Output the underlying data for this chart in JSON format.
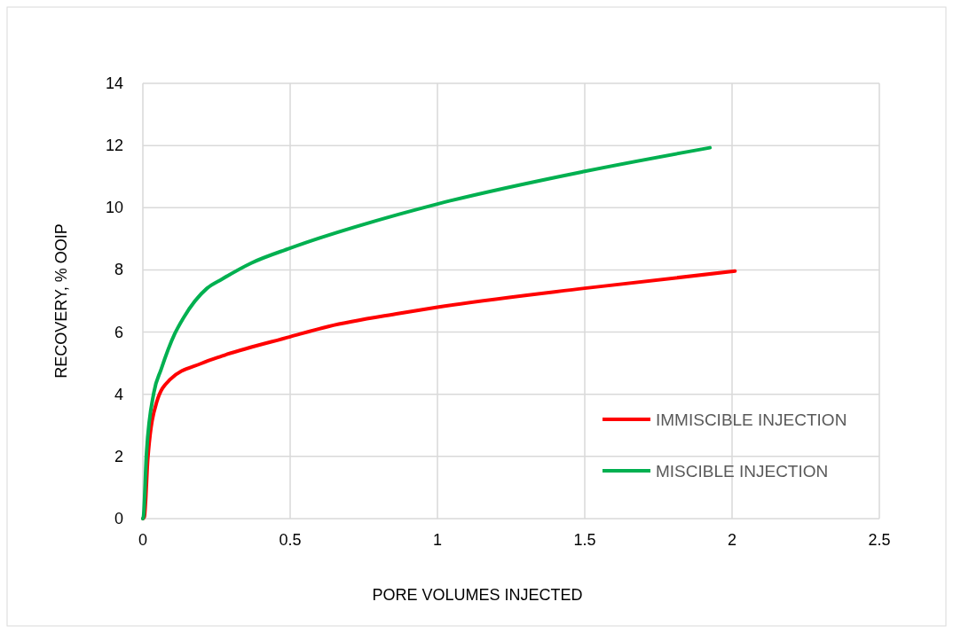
{
  "chart_data": {
    "type": "line",
    "xlabel": "PORE VOLUMES INJECTED",
    "ylabel": "RECOVERY, % OOIP",
    "xlim": [
      0,
      2.5
    ],
    "xticks": [
      0,
      0.5,
      1,
      1.5,
      2,
      2.5
    ],
    "ylim": [
      0,
      14
    ],
    "yticks": [
      0,
      2,
      4,
      6,
      8,
      10,
      12,
      14
    ],
    "grid": true,
    "legend": "bottom right",
    "marker": "none",
    "line_style": "solid",
    "series": [
      {
        "name": "IMMISCIBLE INJECTION",
        "color": "#ff0000",
        "x": [
          0,
          0.005,
          0.017,
          0.047,
          0.092,
          0.198,
          0.268,
          0.5,
          0.63,
          0.87,
          1.0,
          1.5,
          2.01
        ],
        "values": [
          0,
          0.06,
          1.95,
          3.75,
          4.47,
          4.99,
          5.23,
          5.85,
          6.18,
          6.6,
          6.8,
          7.41,
          7.96
        ]
      },
      {
        "name": "MISCIBLE INJECTION",
        "color": "#00b050",
        "x": [
          0,
          0.002,
          0.012,
          0.037,
          0.062,
          0.108,
          0.138,
          0.218,
          0.268,
          0.368,
          0.5,
          0.87,
          1.0,
          1.5,
          1.925
        ],
        "values": [
          0,
          0.06,
          2.04,
          4.04,
          4.8,
          5.94,
          6.46,
          7.41,
          7.7,
          8.22,
          8.7,
          9.79,
          10.12,
          11.17,
          11.93
        ]
      }
    ]
  }
}
